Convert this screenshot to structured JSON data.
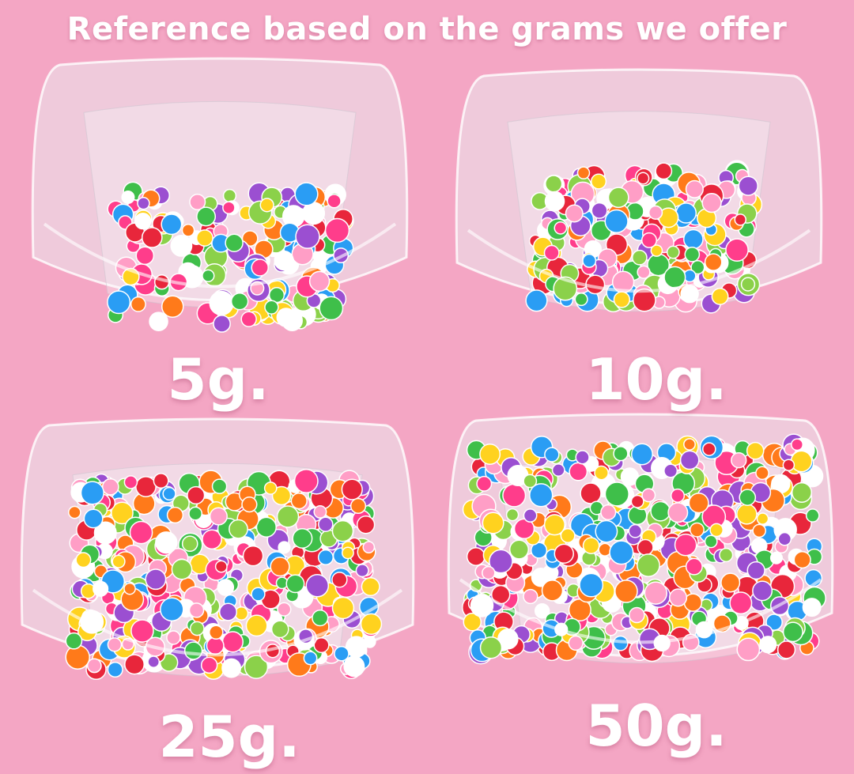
{
  "title": "Reference based on the grams we offer",
  "panels": [
    {
      "label": "5g."
    },
    {
      "label": "10g."
    },
    {
      "label": "25g."
    },
    {
      "label": "50g."
    }
  ],
  "colors": {
    "background": "#f4a6c4",
    "text": "#ffffff",
    "confetti": [
      "#ff3d8b",
      "#ffd21f",
      "#3fbf4a",
      "#ff7a1a",
      "#e8263b",
      "#9b4fd1",
      "#ffffff",
      "#2a9df4",
      "#ff9ec6",
      "#8bd14a"
    ]
  }
}
